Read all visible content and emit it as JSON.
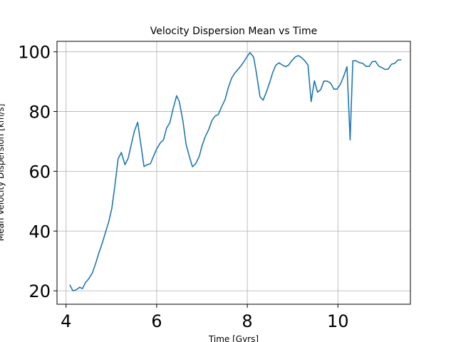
{
  "chart_data": {
    "type": "line",
    "title": "Velocity Dispersion Mean vs Time",
    "xlabel": "Time [Gyrs]",
    "ylabel": "Mean Velocity Dispersion [km/s]",
    "xlim": [
      3.8,
      11.6
    ],
    "ylim": [
      15.5,
      103.5
    ],
    "xticks": [
      4,
      6,
      8,
      10
    ],
    "yticks": [
      20,
      40,
      60,
      80,
      100
    ],
    "grid": true,
    "line_color": "#1f77b4",
    "series": [
      {
        "name": "",
        "x": [
          4.08,
          4.15,
          4.22,
          4.3,
          4.36,
          4.43,
          4.5,
          4.58,
          4.65,
          4.72,
          4.8,
          4.87,
          4.94,
          5.01,
          5.08,
          5.15,
          5.22,
          5.3,
          5.37,
          5.44,
          5.51,
          5.58,
          5.66,
          5.72,
          5.79,
          5.86,
          5.93,
          6.0,
          6.08,
          6.15,
          6.22,
          6.29,
          6.36,
          6.44,
          6.5,
          6.58,
          6.65,
          6.72,
          6.79,
          6.86,
          6.94,
          7.0,
          7.07,
          7.15,
          7.22,
          7.29,
          7.36,
          7.43,
          7.51,
          7.58,
          7.65,
          7.72,
          7.79,
          7.86,
          7.93,
          8.0,
          8.06,
          8.14,
          8.2,
          8.28,
          8.35,
          8.42,
          8.49,
          8.56,
          8.63,
          8.7,
          8.78,
          8.85,
          8.91,
          8.98,
          9.06,
          9.13,
          9.2,
          9.27,
          9.34,
          9.41,
          9.48,
          9.55,
          9.62,
          9.69,
          9.76,
          9.84,
          9.91,
          9.98,
          10.05,
          10.12,
          10.2,
          10.27,
          10.33,
          10.4,
          10.47,
          10.55,
          10.62,
          10.69,
          10.76,
          10.83,
          10.9,
          10.97,
          11.04,
          11.11,
          11.18,
          11.26,
          11.33,
          11.4
        ],
        "y": [
          22,
          20,
          20.3,
          21.2,
          20.7,
          22.8,
          24,
          26,
          29,
          32.5,
          36,
          39.5,
          43,
          47.5,
          55.5,
          64.2,
          66.3,
          62.2,
          64.3,
          69,
          73.5,
          76.4,
          68,
          61.6,
          62.2,
          62.5,
          65,
          67.5,
          69.5,
          70.5,
          74.5,
          76.2,
          80.8,
          85.3,
          83.3,
          76.7,
          69,
          65,
          61.5,
          62.5,
          65,
          68.5,
          71.5,
          74,
          77,
          78.5,
          79,
          81.5,
          84,
          88,
          91,
          92.8,
          94,
          95.3,
          96.8,
          98.5,
          99.7,
          98.2,
          93,
          85,
          83.8,
          86.5,
          89.5,
          93,
          95.5,
          96.3,
          95.5,
          95,
          95.5,
          97,
          98.3,
          98.7,
          98,
          97,
          95.5,
          83.3,
          90.3,
          86.5,
          87.3,
          90.2,
          90.2,
          89.5,
          87.5,
          87.5,
          89,
          91.5,
          95,
          70.5,
          97,
          97,
          96.4,
          96.1,
          95.1,
          95.1,
          96.7,
          96.8,
          95.2,
          94.7,
          94.1,
          94.2,
          95.8,
          96.2,
          97.3,
          97.3
        ]
      }
    ]
  }
}
